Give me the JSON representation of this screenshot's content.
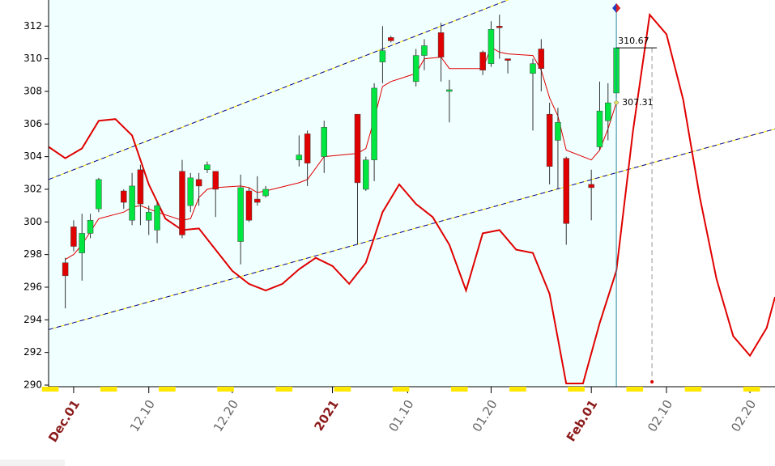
{
  "chart_data": {
    "type": "candlestick",
    "x": [
      "2020-11-30",
      "2020-12-01",
      "2020-12-02",
      "2020-12-03",
      "2020-12-04",
      "2020-12-07",
      "2020-12-08",
      "2020-12-09",
      "2020-12-10",
      "2020-12-11",
      "2020-12-14",
      "2020-12-15",
      "2020-12-16",
      "2020-12-17",
      "2020-12-18",
      "2020-12-21",
      "2020-12-22",
      "2020-12-23",
      "2020-12-24",
      "2020-12-28",
      "2020-12-29",
      "2020-12-31",
      "2021-01-04",
      "2021-01-05",
      "2021-01-06",
      "2021-01-07",
      "2021-01-08",
      "2021-01-11",
      "2021-01-12",
      "2021-01-14",
      "2021-01-15",
      "2021-01-19",
      "2021-01-20",
      "2021-01-21",
      "2021-01-22",
      "2021-01-25",
      "2021-01-26",
      "2021-01-27",
      "2021-01-28",
      "2021-01-29",
      "2021-02-01",
      "2021-02-02",
      "2021-02-03",
      "2021-02-04"
    ],
    "open": [
      297.5,
      299.7,
      298.1,
      299.3,
      300.8,
      301.9,
      300.1,
      303.2,
      300.1,
      299.5,
      303.1,
      301,
      302.6,
      303.2,
      303.1,
      298.8,
      301.9,
      301.4,
      301.6,
      303.8,
      305.4,
      304,
      306.6,
      302,
      303.8,
      309.8,
      311.3,
      308.6,
      310.2,
      311.6,
      308,
      310.4,
      309.7,
      312,
      310,
      309.1,
      310.6,
      306.6,
      305,
      303.9,
      302.3,
      304.6,
      306.2,
      307.9
    ],
    "high": [
      297.8,
      300.1,
      300.5,
      300.5,
      302.7,
      302,
      303,
      303.5,
      301,
      301.2,
      303.8,
      303,
      303,
      303.7,
      303.1,
      302.9,
      302.1,
      302.8,
      302.2,
      305.3,
      305.6,
      306.2,
      306.6,
      304,
      308.5,
      312,
      311.4,
      310.6,
      311.2,
      312.2,
      308.7,
      310.5,
      312.3,
      312.7,
      310,
      310,
      311.2,
      307.3,
      307,
      304,
      303.2,
      308.6,
      308.5,
      310.7
    ],
    "low": [
      294.7,
      298.2,
      296.4,
      299,
      300.6,
      300.8,
      299.8,
      299.8,
      299.2,
      298.7,
      299,
      300.6,
      301,
      303,
      300.3,
      297.4,
      300,
      301,
      301.5,
      303.4,
      302.2,
      303,
      298.6,
      301.9,
      302.5,
      308.5,
      311,
      308.3,
      309.3,
      308.6,
      306.1,
      309,
      309.5,
      310,
      309.1,
      305.6,
      308,
      302.3,
      302,
      298.6,
      300.1,
      304.4,
      305,
      307.6
    ],
    "close": [
      296.7,
      298.5,
      299.3,
      300.1,
      302.6,
      301.2,
      302.2,
      301.1,
      300.6,
      301,
      299.2,
      302.7,
      302.2,
      303.5,
      302,
      302.1,
      300.1,
      301.2,
      302,
      304.1,
      303.6,
      305.8,
      302.4,
      303.8,
      308.2,
      310.5,
      311.1,
      310.2,
      310.8,
      310.1,
      308.1,
      309.3,
      311.8,
      311.9,
      309.9,
      309.7,
      309.4,
      303.4,
      306.1,
      299.9,
      302.1,
      306.8,
      307.3,
      310.67
    ],
    "up_color": "#00e640",
    "down_color": "#e00000",
    "lines": [
      {
        "color": "#e00000",
        "values": [
          297.7,
          298,
          298.6,
          299.4,
          300.2,
          300.6,
          300.9,
          301,
          300.8,
          300.6,
          300.1,
          300.2,
          301.5,
          302,
          302.1,
          302.2,
          302.1,
          301.8,
          301.9,
          302.4,
          302.6,
          304,
          304.2,
          304.5,
          306.3,
          308.3,
          308.6,
          309.1,
          310,
          310.1,
          309.4,
          309.4,
          310.7,
          310.4,
          310.3,
          310.2,
          309.3,
          307.6,
          306.5,
          304.4,
          303.8,
          304.4,
          305.7,
          307.31
        ]
      }
    ],
    "oscillator": {
      "color": "#e00000",
      "x": [
        "2020-11-28",
        "2020-11-30",
        "2020-12-02",
        "2020-12-04",
        "2020-12-06",
        "2020-12-08",
        "2020-12-10",
        "2020-12-12",
        "2020-12-14",
        "2020-12-16",
        "2020-12-18",
        "2020-12-20",
        "2020-12-22",
        "2020-12-24",
        "2020-12-26",
        "2020-12-28",
        "2020-12-30",
        "2021-01-01",
        "2021-01-03",
        "2021-01-05",
        "2021-01-07",
        "2021-01-09",
        "2021-01-11",
        "2021-01-13",
        "2021-01-15",
        "2021-01-17",
        "2021-01-19",
        "2021-01-21",
        "2021-01-23",
        "2021-01-25",
        "2021-01-27",
        "2021-01-29",
        "2021-01-31",
        "2021-02-02",
        "2021-02-04",
        "2021-02-06",
        "2021-02-08",
        "2021-02-10",
        "2021-02-12",
        "2021-02-14",
        "2021-02-16",
        "2021-02-18",
        "2021-02-20",
        "2021-02-22",
        "2021-02-23"
      ],
      "values": [
        304.6,
        303.9,
        304.5,
        306.2,
        306.3,
        305.3,
        302.3,
        300.2,
        299.5,
        299.6,
        298.3,
        297,
        296.2,
        295.8,
        296.2,
        297.1,
        297.8,
        297.3,
        296.2,
        297.5,
        300.6,
        302.3,
        301.1,
        300.3,
        298.6,
        295.8,
        299.3,
        299.5,
        298.3,
        298.1,
        295.6,
        290.1,
        290.1,
        293.8,
        297,
        305.6,
        312.7,
        311.5,
        307.5,
        301.5,
        296.5,
        293,
        291.8,
        293.5,
        295.4
      ]
    },
    "trend_lines": [
      {
        "color": "#000080",
        "x": [
          "2020-11-28",
          "2021-02-23"
        ],
        "values": [
          302.6,
          320
        ]
      },
      {
        "color": "#000080",
        "x": [
          "2020-11-28",
          "2021-02-23"
        ],
        "values": [
          293.4,
          305.7
        ]
      }
    ],
    "annotations": [
      {
        "text": "310.67",
        "x": "2021-02-04",
        "y": 310.67
      },
      {
        "text": "307.31",
        "x": "2021-02-04",
        "y": 307.31
      }
    ],
    "xlim": [
      "2020-11-28",
      "2021-02-23"
    ],
    "xticks": [
      {
        "value": "2020-12-01",
        "label": "Dec.01",
        "color": "#8b1a1a"
      },
      {
        "value": "2020-12-10",
        "label": "12.10",
        "color": "#666666"
      },
      {
        "value": "2020-12-20",
        "label": "12.20",
        "color": "#666666"
      },
      {
        "value": "2021-01-01",
        "label": "2021",
        "color": "#8b1a1a"
      },
      {
        "value": "2021-01-10",
        "label": "01.10",
        "color": "#666666"
      },
      {
        "value": "2021-01-20",
        "label": "01.20",
        "color": "#666666"
      },
      {
        "value": "2021-02-01",
        "label": "Feb.01",
        "color": "#8b1a1a"
      },
      {
        "value": "2021-02-10",
        "label": "02.10",
        "color": "#666666"
      },
      {
        "value": "2021-02-20",
        "label": "02.20",
        "color": "#666666"
      }
    ],
    "ylim": [
      290,
      313.6
    ],
    "yticks": [
      290,
      292,
      294,
      296,
      298,
      300,
      302,
      304,
      306,
      308,
      310,
      312
    ]
  }
}
